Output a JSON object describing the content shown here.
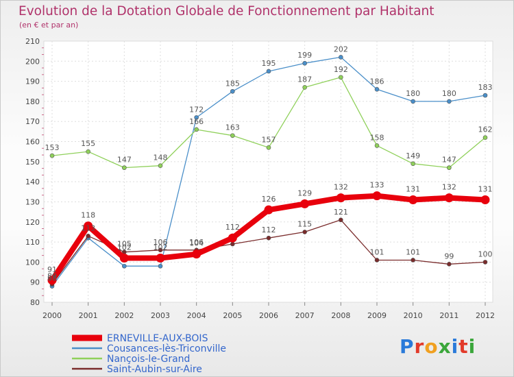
{
  "title": "Evolution de la Dotation Globale de Fonctionnement par Habitant",
  "subtitle": "(en € et par an)",
  "logo": {
    "text": "Proxiti",
    "colors": [
      "#2a7ad9",
      "#e23a2a",
      "#f0a020",
      "#3aa63a",
      "#2a7ad9",
      "#e23a2a",
      "#3aa63a"
    ]
  },
  "chart_data": {
    "type": "line",
    "title": "Evolution de la Dotation Globale de Fonctionnement par Habitant",
    "subtitle": "(en € et par an)",
    "xlabel": "",
    "ylabel": "",
    "ylim": [
      80,
      210
    ],
    "yticks": [
      80,
      90,
      100,
      110,
      120,
      130,
      140,
      150,
      160,
      170,
      180,
      190,
      200,
      210
    ],
    "x": [
      "2000",
      "2001",
      "2002",
      "2003",
      "2004",
      "2005",
      "2006",
      "2007",
      "2008",
      "2009",
      "2010",
      "2011",
      "2012"
    ],
    "grid": true,
    "legend_position": "bottom-left",
    "series": [
      {
        "name": "Cousances-lès-Triconville",
        "color": "#4a8fc9",
        "emphasis": false,
        "values": [
          88,
          112,
          98,
          98,
          172,
          185,
          195,
          199,
          202,
          186,
          180,
          180,
          183
        ],
        "labels": [
          "88",
          "",
          "",
          "",
          "172",
          "185",
          "195",
          "199",
          "202",
          "186",
          "180",
          "180",
          "183"
        ]
      },
      {
        "name": "Nançois-le-Grand",
        "color": "#8fd05a",
        "emphasis": false,
        "values": [
          153,
          155,
          147,
          148,
          166,
          163,
          157,
          187,
          192,
          158,
          149,
          147,
          162
        ],
        "labels": [
          "153",
          "155",
          "147",
          "148",
          "166",
          "163",
          "157",
          "187",
          "192",
          "158",
          "149",
          "147",
          "162"
        ]
      },
      {
        "name": "Saint-Aubin-sur-Aire",
        "color": "#7a2c2c",
        "emphasis": false,
        "values": [
          89,
          113,
          105,
          106,
          106,
          109,
          112,
          115,
          121,
          101,
          101,
          99,
          100
        ],
        "labels": [
          "89",
          "113",
          "105",
          "106",
          "106",
          "",
          "112",
          "115",
          "121",
          "101",
          "101",
          "99",
          "100"
        ]
      },
      {
        "name": "ERNEVILLE-AUX-BOIS",
        "color": "#e8000c",
        "emphasis": true,
        "values": [
          91,
          118,
          102,
          102,
          104,
          112,
          126,
          129,
          132,
          133,
          131,
          132,
          131
        ],
        "labels": [
          "91",
          "118",
          "102",
          "102",
          "104",
          "112",
          "126",
          "129",
          "132",
          "133",
          "131",
          "132",
          "131"
        ]
      }
    ]
  }
}
